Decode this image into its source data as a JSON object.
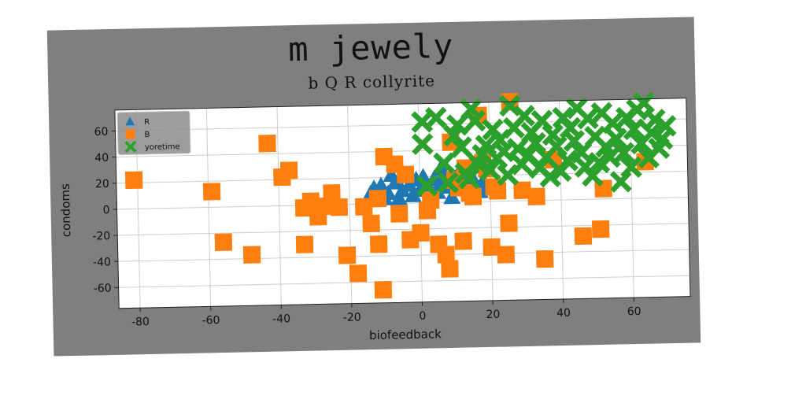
{
  "chart_data": {
    "type": "scatter",
    "title": "m jewely",
    "subtitle": "b Q R collyrite",
    "xlabel": "biofeedback",
    "ylabel": "condoms",
    "xlim": [
      -86,
      76
    ],
    "ylim": [
      -76,
      76
    ],
    "xticks": [
      -80,
      -60,
      -40,
      -20,
      0,
      20,
      40,
      60
    ],
    "yticks": [
      -60,
      -40,
      -20,
      0,
      20,
      40,
      60
    ],
    "grid": true,
    "legend_position": "upper-left",
    "series": [
      {
        "name": "R",
        "marker": "triangle",
        "color": "#1f77b4",
        "points": [
          [
            -13,
            12
          ],
          [
            -11,
            14
          ],
          [
            -9,
            8
          ],
          [
            -8,
            22
          ],
          [
            -7,
            16
          ],
          [
            -6,
            4
          ],
          [
            -5,
            10
          ],
          [
            -4,
            22
          ],
          [
            -3,
            14
          ],
          [
            -2,
            6
          ],
          [
            -1,
            18
          ],
          [
            0,
            10
          ],
          [
            1,
            20
          ],
          [
            2,
            14
          ],
          [
            3,
            4
          ],
          [
            4,
            18
          ],
          [
            5,
            8
          ],
          [
            6,
            16
          ],
          [
            8,
            12
          ],
          [
            9,
            4
          ],
          [
            10,
            18
          ],
          [
            11,
            22
          ],
          [
            12,
            10
          ],
          [
            13,
            14
          ],
          [
            14,
            6
          ],
          [
            15,
            18
          ],
          [
            16,
            12
          ],
          [
            17,
            8
          ],
          [
            18,
            16
          ],
          [
            19,
            10
          ],
          [
            7,
            22
          ],
          [
            -10,
            4
          ],
          [
            6,
            26
          ],
          [
            -14,
            8
          ]
        ]
      },
      {
        "name": "B",
        "marker": "square",
        "color": "#ff7f0e",
        "points": [
          [
            -81,
            22
          ],
          [
            -59,
            12
          ],
          [
            -56,
            -27
          ],
          [
            -48,
            -37
          ],
          [
            -43,
            48
          ],
          [
            -39,
            22
          ],
          [
            -37,
            27
          ],
          [
            -33,
            -2
          ],
          [
            -33,
            -30
          ],
          [
            -31,
            3
          ],
          [
            -29,
            -9
          ],
          [
            -27,
            -1
          ],
          [
            -25,
            9
          ],
          [
            -23,
            -2
          ],
          [
            -21,
            -39
          ],
          [
            -18,
            -53
          ],
          [
            -16,
            -2
          ],
          [
            -14,
            -15
          ],
          [
            -12,
            -31
          ],
          [
            -12,
            4
          ],
          [
            -11,
            -66
          ],
          [
            -10,
            36
          ],
          [
            -7,
            30
          ],
          [
            -6,
            -8
          ],
          [
            -3,
            -28
          ],
          [
            0,
            -23
          ],
          [
            3,
            2
          ],
          [
            5,
            -32
          ],
          [
            7,
            -40
          ],
          [
            8,
            -51
          ],
          [
            9,
            46
          ],
          [
            10,
            17
          ],
          [
            11,
            11
          ],
          [
            12,
            -30
          ],
          [
            13,
            26
          ],
          [
            14,
            7
          ],
          [
            15,
            4
          ],
          [
            17,
            66
          ],
          [
            18,
            30
          ],
          [
            19,
            25
          ],
          [
            20,
            -35
          ],
          [
            21,
            11
          ],
          [
            22,
            8
          ],
          [
            24,
            -41
          ],
          [
            25,
            -17
          ],
          [
            26,
            76
          ],
          [
            29,
            8
          ],
          [
            33,
            3
          ],
          [
            35,
            -45
          ],
          [
            38,
            31
          ],
          [
            46,
            -28
          ],
          [
            51,
            -23
          ],
          [
            52,
            8
          ],
          [
            64,
            28
          ],
          [
            2,
            -6
          ],
          [
            -4,
            22
          ]
        ]
      },
      {
        "name": "yoretime",
        "marker": "x",
        "color": "#2ca02c",
        "points": [
          [
            1,
            62
          ],
          [
            1,
            45
          ],
          [
            2,
            13
          ],
          [
            5,
            65
          ],
          [
            7,
            30
          ],
          [
            8,
            15
          ],
          [
            10,
            51
          ],
          [
            11,
            59
          ],
          [
            12,
            42
          ],
          [
            13,
            22
          ],
          [
            14,
            18
          ],
          [
            15,
            71
          ],
          [
            16,
            62
          ],
          [
            17,
            28
          ],
          [
            18,
            36
          ],
          [
            19,
            43
          ],
          [
            20,
            24
          ],
          [
            21,
            55
          ],
          [
            22,
            33
          ],
          [
            23,
            47
          ],
          [
            24,
            38
          ],
          [
            25,
            20
          ],
          [
            26,
            73
          ],
          [
            27,
            56
          ],
          [
            28,
            40
          ],
          [
            29,
            28
          ],
          [
            30,
            65
          ],
          [
            31,
            35
          ],
          [
            32,
            52
          ],
          [
            33,
            44
          ],
          [
            34,
            25
          ],
          [
            35,
            61
          ],
          [
            36,
            33
          ],
          [
            37,
            18
          ],
          [
            38,
            50
          ],
          [
            39,
            41
          ],
          [
            40,
            22
          ],
          [
            41,
            63
          ],
          [
            42,
            30
          ],
          [
            43,
            55
          ],
          [
            44,
            45
          ],
          [
            45,
            70
          ],
          [
            46,
            36
          ],
          [
            47,
            25
          ],
          [
            48,
            62
          ],
          [
            49,
            18
          ],
          [
            50,
            48
          ],
          [
            51,
            28
          ],
          [
            52,
            66
          ],
          [
            53,
            40
          ],
          [
            54,
            32
          ],
          [
            55,
            58
          ],
          [
            56,
            46
          ],
          [
            57,
            13
          ],
          [
            58,
            35
          ],
          [
            59,
            62
          ],
          [
            60,
            24
          ],
          [
            61,
            53
          ],
          [
            62,
            68
          ],
          [
            63,
            42
          ],
          [
            64,
            73
          ],
          [
            65,
            31
          ],
          [
            66,
            50
          ],
          [
            67,
            60
          ],
          [
            68,
            38
          ],
          [
            69,
            45
          ],
          [
            70,
            55
          ]
        ]
      }
    ]
  }
}
